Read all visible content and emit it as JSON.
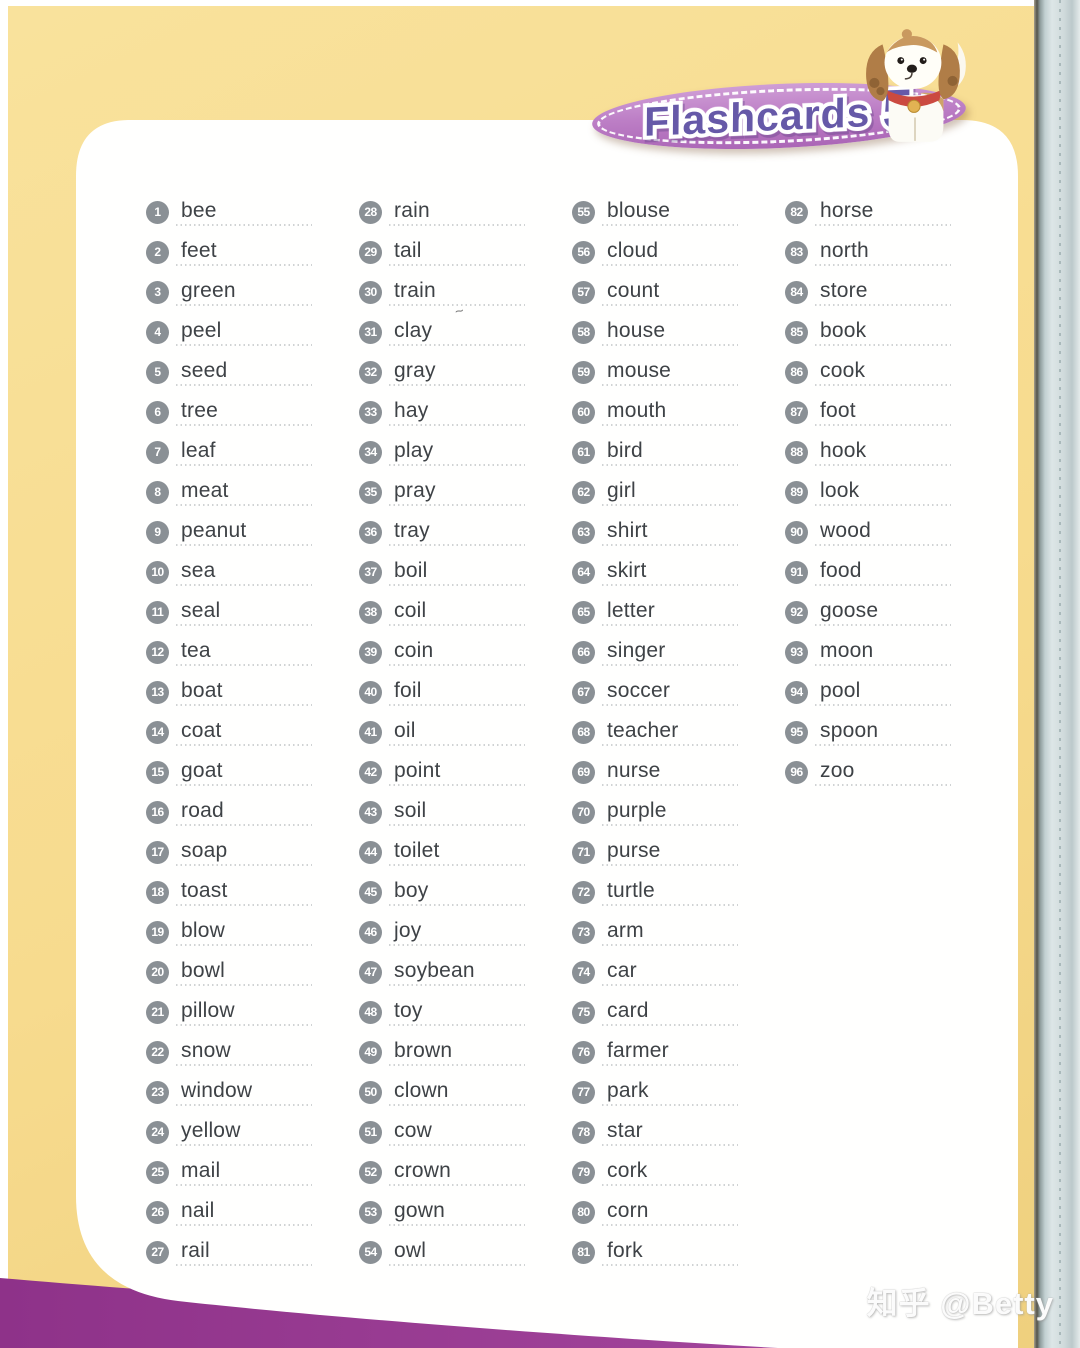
{
  "banner": {
    "label": "Flashcards",
    "number": "5"
  },
  "watermark": "知乎 @Betty",
  "artifact": "~",
  "colors": {
    "page_yellow": "#f7db8e",
    "card_white": "#fffffe",
    "band_purple": "#9c3f98",
    "banner_fill_top": "#cf9ed6",
    "banner_fill_bottom": "#ab66b6",
    "banner_text": "#6659a8",
    "badge_gray": "#8a9095",
    "word_color": "#3e4246",
    "dotted_line": "#c8cbcd",
    "book_edge": "#cfdadb"
  },
  "flashcards": {
    "columns": [
      {
        "items": [
          {
            "n": 1,
            "w": "bee"
          },
          {
            "n": 2,
            "w": "feet"
          },
          {
            "n": 3,
            "w": "green"
          },
          {
            "n": 4,
            "w": "peel"
          },
          {
            "n": 5,
            "w": "seed"
          },
          {
            "n": 6,
            "w": "tree"
          },
          {
            "n": 7,
            "w": "leaf"
          },
          {
            "n": 8,
            "w": "meat"
          },
          {
            "n": 9,
            "w": "peanut"
          },
          {
            "n": 10,
            "w": "sea"
          },
          {
            "n": 11,
            "w": "seal"
          },
          {
            "n": 12,
            "w": "tea"
          },
          {
            "n": 13,
            "w": "boat"
          },
          {
            "n": 14,
            "w": "coat"
          },
          {
            "n": 15,
            "w": "goat"
          },
          {
            "n": 16,
            "w": "road"
          },
          {
            "n": 17,
            "w": "soap"
          },
          {
            "n": 18,
            "w": "toast"
          },
          {
            "n": 19,
            "w": "blow"
          },
          {
            "n": 20,
            "w": "bowl"
          },
          {
            "n": 21,
            "w": "pillow"
          },
          {
            "n": 22,
            "w": "snow"
          },
          {
            "n": 23,
            "w": "window"
          },
          {
            "n": 24,
            "w": "yellow"
          },
          {
            "n": 25,
            "w": "mail"
          },
          {
            "n": 26,
            "w": "nail"
          },
          {
            "n": 27,
            "w": "rail"
          }
        ]
      },
      {
        "items": [
          {
            "n": 28,
            "w": "rain"
          },
          {
            "n": 29,
            "w": "tail"
          },
          {
            "n": 30,
            "w": "train"
          },
          {
            "n": 31,
            "w": "clay"
          },
          {
            "n": 32,
            "w": "gray"
          },
          {
            "n": 33,
            "w": "hay"
          },
          {
            "n": 34,
            "w": "play"
          },
          {
            "n": 35,
            "w": "pray"
          },
          {
            "n": 36,
            "w": "tray"
          },
          {
            "n": 37,
            "w": "boil"
          },
          {
            "n": 38,
            "w": "coil"
          },
          {
            "n": 39,
            "w": "coin"
          },
          {
            "n": 40,
            "w": "foil"
          },
          {
            "n": 41,
            "w": "oil"
          },
          {
            "n": 42,
            "w": "point"
          },
          {
            "n": 43,
            "w": "soil"
          },
          {
            "n": 44,
            "w": "toilet"
          },
          {
            "n": 45,
            "w": "boy"
          },
          {
            "n": 46,
            "w": "joy"
          },
          {
            "n": 47,
            "w": "soybean"
          },
          {
            "n": 48,
            "w": "toy"
          },
          {
            "n": 49,
            "w": "brown"
          },
          {
            "n": 50,
            "w": "clown"
          },
          {
            "n": 51,
            "w": "cow"
          },
          {
            "n": 52,
            "w": "crown"
          },
          {
            "n": 53,
            "w": "gown"
          },
          {
            "n": 54,
            "w": "owl"
          }
        ]
      },
      {
        "items": [
          {
            "n": 55,
            "w": "blouse"
          },
          {
            "n": 56,
            "w": "cloud"
          },
          {
            "n": 57,
            "w": "count"
          },
          {
            "n": 58,
            "w": "house"
          },
          {
            "n": 59,
            "w": "mouse"
          },
          {
            "n": 60,
            "w": "mouth"
          },
          {
            "n": 61,
            "w": "bird"
          },
          {
            "n": 62,
            "w": "girl"
          },
          {
            "n": 63,
            "w": "shirt"
          },
          {
            "n": 64,
            "w": "skirt"
          },
          {
            "n": 65,
            "w": "letter"
          },
          {
            "n": 66,
            "w": "singer"
          },
          {
            "n": 67,
            "w": "soccer"
          },
          {
            "n": 68,
            "w": "teacher"
          },
          {
            "n": 69,
            "w": "nurse"
          },
          {
            "n": 70,
            "w": "purple"
          },
          {
            "n": 71,
            "w": "purse"
          },
          {
            "n": 72,
            "w": "turtle"
          },
          {
            "n": 73,
            "w": "arm"
          },
          {
            "n": 74,
            "w": "car"
          },
          {
            "n": 75,
            "w": "card"
          },
          {
            "n": 76,
            "w": "farmer"
          },
          {
            "n": 77,
            "w": "park"
          },
          {
            "n": 78,
            "w": "star"
          },
          {
            "n": 79,
            "w": "cork"
          },
          {
            "n": 80,
            "w": "corn"
          },
          {
            "n": 81,
            "w": "fork"
          }
        ]
      },
      {
        "items": [
          {
            "n": 82,
            "w": "horse"
          },
          {
            "n": 83,
            "w": "north"
          },
          {
            "n": 84,
            "w": "store"
          },
          {
            "n": 85,
            "w": "book"
          },
          {
            "n": 86,
            "w": "cook"
          },
          {
            "n": 87,
            "w": "foot"
          },
          {
            "n": 88,
            "w": "hook"
          },
          {
            "n": 89,
            "w": "look"
          },
          {
            "n": 90,
            "w": "wood"
          },
          {
            "n": 91,
            "w": "food"
          },
          {
            "n": 92,
            "w": "goose"
          },
          {
            "n": 93,
            "w": "moon"
          },
          {
            "n": 94,
            "w": "pool"
          },
          {
            "n": 95,
            "w": "spoon"
          },
          {
            "n": 96,
            "w": "zoo"
          }
        ]
      }
    ]
  }
}
